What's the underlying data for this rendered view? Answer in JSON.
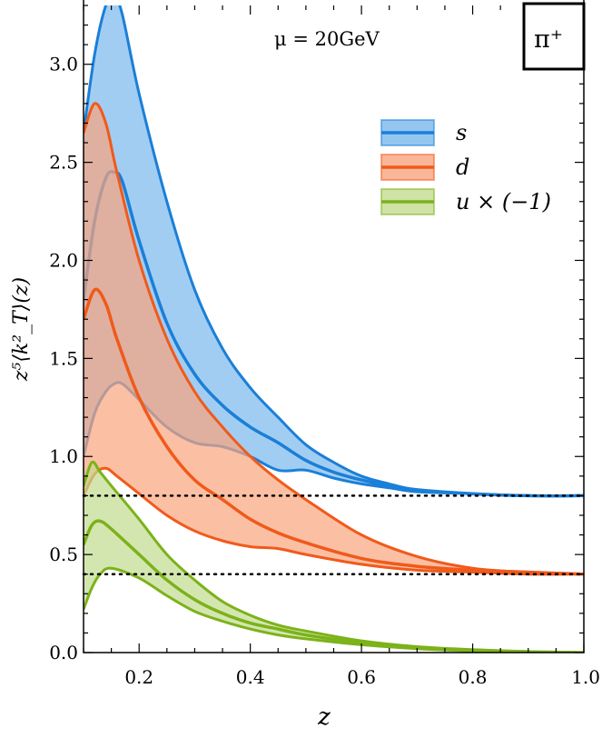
{
  "chart_data": {
    "type": "area",
    "title": "",
    "xlabel": "z",
    "ylabel": "z⁵⟨k²_T⟩(z)",
    "xlim": [
      0.1,
      1.0
    ],
    "ylim": [
      0.0,
      3.3
    ],
    "xticks": [
      0.2,
      0.4,
      0.6,
      0.8,
      1.0
    ],
    "yticks": [
      0.0,
      0.5,
      1.0,
      1.5,
      2.0,
      2.5,
      3.0
    ],
    "xtick_labels": [
      "0.2",
      "0.4",
      "0.6",
      "0.8",
      "1.0"
    ],
    "ytick_labels": [
      "0.0",
      "0.5",
      "1.0",
      "1.5",
      "2.0",
      "2.5",
      "3.0"
    ],
    "grid": false,
    "legend_position": "top-right",
    "annotation": "μ = 20GeV",
    "badge": "π⁺",
    "reference_lines": [
      0.8,
      0.4
    ],
    "series": [
      {
        "name": "s",
        "color": "#1a7fd8",
        "fill": "#7ab8ec",
        "x": [
          0.1,
          0.12,
          0.14,
          0.155,
          0.17,
          0.2,
          0.25,
          0.3,
          0.35,
          0.4,
          0.45,
          0.5,
          0.55,
          0.6,
          0.65,
          0.7,
          0.8,
          0.9,
          1.0
        ],
        "upper": [
          2.65,
          3.05,
          3.3,
          3.35,
          3.25,
          2.85,
          2.3,
          1.85,
          1.55,
          1.35,
          1.2,
          1.06,
          0.97,
          0.9,
          0.86,
          0.83,
          0.81,
          0.8,
          0.8
        ],
        "central": [
          1.8,
          2.2,
          2.42,
          2.45,
          2.4,
          2.1,
          1.68,
          1.42,
          1.26,
          1.15,
          1.07,
          0.98,
          0.92,
          0.88,
          0.85,
          0.83,
          0.81,
          0.8,
          0.8
        ],
        "lower": [
          1.0,
          1.22,
          1.33,
          1.37,
          1.37,
          1.29,
          1.15,
          1.07,
          1.05,
          1.0,
          0.93,
          0.93,
          0.89,
          0.86,
          0.84,
          0.82,
          0.81,
          0.8,
          0.8
        ]
      },
      {
        "name": "d",
        "color": "#f05a1a",
        "fill": "#f9a47e",
        "x": [
          0.1,
          0.12,
          0.14,
          0.16,
          0.2,
          0.25,
          0.3,
          0.35,
          0.4,
          0.45,
          0.5,
          0.6,
          0.7,
          0.8,
          0.9,
          1.0
        ],
        "upper": [
          2.65,
          2.8,
          2.7,
          2.45,
          2.0,
          1.6,
          1.33,
          1.15,
          1.0,
          0.88,
          0.78,
          0.6,
          0.49,
          0.43,
          0.41,
          0.4
        ],
        "central": [
          1.7,
          1.85,
          1.78,
          1.6,
          1.3,
          1.05,
          0.88,
          0.78,
          0.68,
          0.61,
          0.56,
          0.48,
          0.44,
          0.42,
          0.41,
          0.4
        ],
        "lower": [
          0.8,
          0.91,
          0.94,
          0.9,
          0.81,
          0.7,
          0.62,
          0.57,
          0.54,
          0.53,
          0.5,
          0.45,
          0.42,
          0.41,
          0.4,
          0.4
        ]
      },
      {
        "name": "u × (−1)",
        "color": "#7cb21a",
        "fill": "#c2dc8e",
        "x": [
          0.1,
          0.115,
          0.13,
          0.15,
          0.2,
          0.25,
          0.3,
          0.35,
          0.4,
          0.45,
          0.5,
          0.6,
          0.7,
          0.8,
          0.9,
          1.0
        ],
        "upper": [
          0.85,
          0.97,
          0.92,
          0.85,
          0.68,
          0.5,
          0.37,
          0.26,
          0.19,
          0.14,
          0.11,
          0.06,
          0.03,
          0.015,
          0.005,
          0.0
        ],
        "central": [
          0.55,
          0.65,
          0.67,
          0.63,
          0.5,
          0.37,
          0.27,
          0.2,
          0.15,
          0.12,
          0.09,
          0.05,
          0.025,
          0.012,
          0.004,
          0.0
        ],
        "lower": [
          0.22,
          0.33,
          0.4,
          0.43,
          0.38,
          0.29,
          0.21,
          0.16,
          0.12,
          0.09,
          0.07,
          0.04,
          0.02,
          0.008,
          0.002,
          0.0
        ]
      }
    ]
  }
}
